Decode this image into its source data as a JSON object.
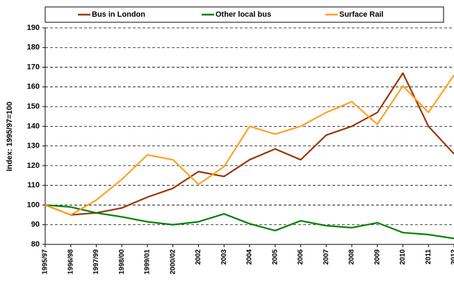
{
  "chart_data": {
    "type": "line",
    "y_label": "Index: 1995/97=100",
    "categories": [
      "1995/97",
      "1996/98",
      "1997/99",
      "1998/00",
      "1999/01",
      "2000/02",
      "2002",
      "2003",
      "2004",
      "2005",
      "2006",
      "2007",
      "2008",
      "2009",
      "2010",
      "2011",
      "2012"
    ],
    "series": [
      {
        "name": "Bus in London",
        "color": "#993300",
        "values": [
          100,
          95,
          96,
          98.5,
          104,
          108.5,
          117,
          114.5,
          123,
          128.5,
          123,
          135.5,
          140,
          147,
          167,
          140,
          126
        ]
      },
      {
        "name": "Other local bus",
        "color": "#008000",
        "values": [
          100,
          99,
          96,
          94,
          91.5,
          90,
          91.5,
          95.5,
          90.5,
          87,
          92,
          89.5,
          88.5,
          91,
          86,
          85,
          83
        ]
      },
      {
        "name": "Surface Rail",
        "color": "#ffa020",
        "values": [
          100,
          95,
          102.5,
          113,
          125.5,
          123,
          110.5,
          119.5,
          140,
          136,
          140,
          147,
          152.5,
          141,
          160.5,
          147,
          166
        ]
      }
    ],
    "ylim": [
      80,
      190
    ],
    "yticks": [
      80,
      90,
      100,
      110,
      120,
      130,
      140,
      150,
      160,
      170,
      180,
      190
    ],
    "grid": true,
    "legend": "top"
  }
}
